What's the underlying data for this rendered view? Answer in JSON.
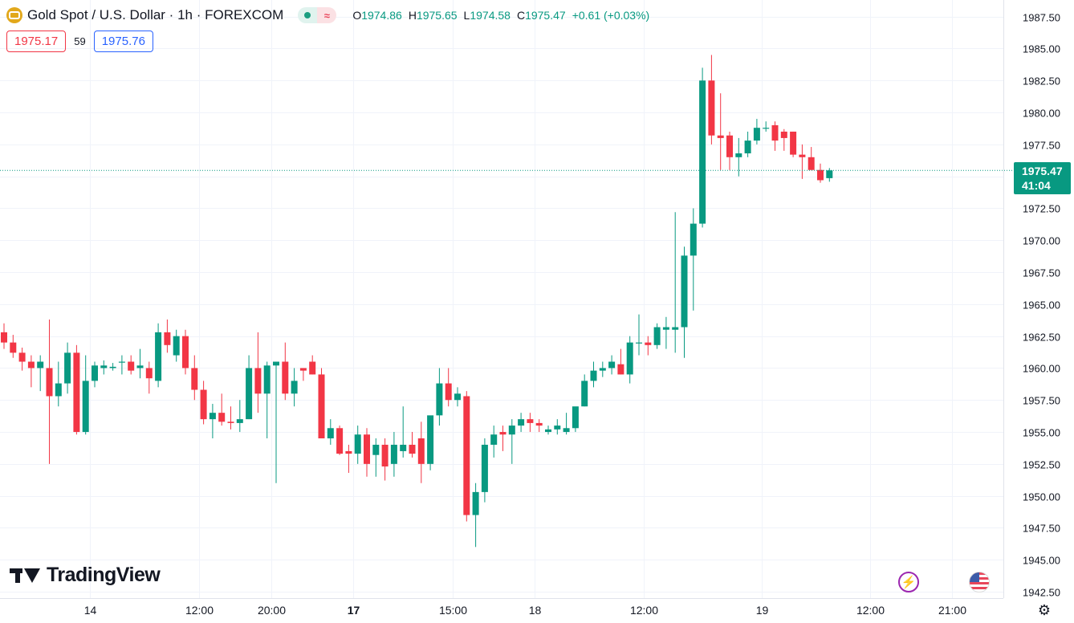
{
  "header": {
    "symbol": "Gold Spot / U.S. Dollar · 1h · FOREXCOM",
    "o_label": "O",
    "o_value": "1974.86",
    "h_label": "H",
    "h_value": "1975.65",
    "l_label": "L",
    "l_value": "1974.58",
    "c_label": "C",
    "c_value": "1975.47",
    "change": "+0.61 (+0.03%)",
    "pill_icon": "≈"
  },
  "trade": {
    "bid": "1975.17",
    "spread": "59",
    "ask": "1975.76"
  },
  "last_price": {
    "price": "1975.47",
    "countdown": "41:04"
  },
  "branding": {
    "logo_text": "TradingView"
  },
  "icons": {
    "bolt": "⚡",
    "gear": "⚙"
  },
  "colors": {
    "up": "#089981",
    "down": "#f23645",
    "grid": "#f0f3fa",
    "text": "#131722"
  },
  "chart_data": {
    "type": "candlestick",
    "title": "",
    "y_ticks": [
      "1942.50",
      "1945.00",
      "1947.50",
      "1950.00",
      "1952.50",
      "1955.00",
      "1957.50",
      "1960.00",
      "1962.50",
      "1965.00",
      "1967.50",
      "1970.00",
      "1972.50",
      "1975.00",
      "1977.50",
      "1980.00",
      "1982.50",
      "1985.00",
      "1987.50"
    ],
    "x_ticks": [
      {
        "label": "14",
        "index": 9.5,
        "bold": false
      },
      {
        "label": "12:00",
        "index": 21.5,
        "bold": false
      },
      {
        "label": "20:00",
        "index": 29.5,
        "bold": false
      },
      {
        "label": "17",
        "index": 38.5,
        "bold": true
      },
      {
        "label": "15:00",
        "index": 49.5,
        "bold": false
      },
      {
        "label": "18",
        "index": 58.5,
        "bold": false
      },
      {
        "label": "12:00",
        "index": 70.5,
        "bold": false
      },
      {
        "label": "19",
        "index": 83.5,
        "bold": false
      },
      {
        "label": "12:00",
        "index": 95.5,
        "bold": false
      },
      {
        "label": "21:00",
        "index": 104.5,
        "bold": false
      }
    ],
    "ylim": [
      1942.0,
      1988.8
    ],
    "last_price": 1975.47,
    "ohlc": [
      [
        1962.8,
        1963.5,
        1961.5,
        1962.0
      ],
      [
        1962.0,
        1962.6,
        1960.8,
        1961.2
      ],
      [
        1961.2,
        1961.6,
        1959.8,
        1960.5
      ],
      [
        1960.5,
        1961.0,
        1958.5,
        1960.0
      ],
      [
        1960.0,
        1961.0,
        1958.2,
        1960.5
      ],
      [
        1960.0,
        1963.8,
        1952.5,
        1957.8
      ],
      [
        1957.8,
        1960.5,
        1957.0,
        1958.8
      ],
      [
        1958.8,
        1962.0,
        1958.0,
        1961.2
      ],
      [
        1961.2,
        1961.8,
        1954.8,
        1955.0
      ],
      [
        1955.0,
        1961.0,
        1954.8,
        1959.0
      ],
      [
        1959.0,
        1960.5,
        1958.5,
        1960.2
      ],
      [
        1960.0,
        1960.6,
        1959.5,
        1960.2
      ],
      [
        1960.0,
        1960.4,
        1959.8,
        1960.1
      ],
      [
        1960.5,
        1961.0,
        1959.5,
        1960.5
      ],
      [
        1960.5,
        1961.0,
        1959.5,
        1959.8
      ],
      [
        1960.0,
        1961.5,
        1959.2,
        1960.2
      ],
      [
        1960.0,
        1960.5,
        1958.0,
        1959.2
      ],
      [
        1959.0,
        1963.5,
        1958.5,
        1962.8
      ],
      [
        1962.8,
        1963.8,
        1961.2,
        1961.8
      ],
      [
        1961.0,
        1963.0,
        1960.5,
        1962.5
      ],
      [
        1962.5,
        1963.0,
        1959.5,
        1960.0
      ],
      [
        1960.0,
        1961.0,
        1957.5,
        1958.3
      ],
      [
        1958.3,
        1959.0,
        1955.6,
        1956.0
      ],
      [
        1956.0,
        1957.2,
        1954.5,
        1956.5
      ],
      [
        1956.5,
        1958.0,
        1955.5,
        1955.8
      ],
      [
        1955.8,
        1957.0,
        1955.2,
        1955.7
      ],
      [
        1955.7,
        1957.5,
        1955.0,
        1956.0
      ],
      [
        1956.0,
        1961.0,
        1956.0,
        1960.0
      ],
      [
        1960.0,
        1962.8,
        1956.5,
        1958.0
      ],
      [
        1958.0,
        1960.5,
        1954.5,
        1960.2
      ],
      [
        1960.2,
        1960.3,
        1951.0,
        1960.5
      ],
      [
        1960.5,
        1962.0,
        1957.5,
        1958.0
      ],
      [
        1958.0,
        1960.0,
        1957.0,
        1959.0
      ],
      [
        1960.0,
        1960.0,
        1959.0,
        1959.8
      ],
      [
        1960.5,
        1961.0,
        1959.5,
        1959.5
      ],
      [
        1959.5,
        1960.0,
        1954.5,
        1954.5
      ],
      [
        1954.5,
        1956.0,
        1954.0,
        1955.3
      ],
      [
        1955.3,
        1955.5,
        1953.2,
        1953.3
      ],
      [
        1953.5,
        1954.0,
        1951.8,
        1953.3
      ],
      [
        1953.3,
        1955.5,
        1952.5,
        1954.8
      ],
      [
        1954.8,
        1955.3,
        1951.5,
        1952.5
      ],
      [
        1953.2,
        1954.5,
        1951.5,
        1954.0
      ],
      [
        1954.0,
        1954.5,
        1951.2,
        1952.3
      ],
      [
        1952.5,
        1955.0,
        1951.5,
        1954.0
      ],
      [
        1953.5,
        1957.0,
        1953.0,
        1954.0
      ],
      [
        1954.0,
        1955.0,
        1953.0,
        1953.3
      ],
      [
        1954.5,
        1955.8,
        1951.0,
        1952.5
      ],
      [
        1952.5,
        1956.0,
        1952.0,
        1956.3
      ],
      [
        1956.3,
        1960.0,
        1955.5,
        1958.8
      ],
      [
        1958.8,
        1960.0,
        1957.0,
        1957.5
      ],
      [
        1957.5,
        1958.5,
        1957.0,
        1958.0
      ],
      [
        1957.8,
        1958.2,
        1948.0,
        1948.5
      ],
      [
        1948.5,
        1951.0,
        1946.0,
        1950.3
      ],
      [
        1950.3,
        1954.5,
        1949.5,
        1954.0
      ],
      [
        1954.0,
        1955.5,
        1953.0,
        1954.8
      ],
      [
        1955.0,
        1955.5,
        1953.5,
        1954.8
      ],
      [
        1954.8,
        1956.0,
        1952.5,
        1955.5
      ],
      [
        1955.5,
        1956.5,
        1955.0,
        1956.0
      ],
      [
        1956.0,
        1956.5,
        1955.0,
        1955.7
      ],
      [
        1955.7,
        1956.0,
        1955.0,
        1955.5
      ],
      [
        1955.0,
        1955.5,
        1954.8,
        1955.2
      ],
      [
        1955.2,
        1956.0,
        1954.8,
        1955.5
      ],
      [
        1955.0,
        1956.5,
        1954.8,
        1955.3
      ],
      [
        1955.3,
        1956.8,
        1955.0,
        1957.0
      ],
      [
        1957.0,
        1959.5,
        1957.0,
        1959.0
      ],
      [
        1959.0,
        1960.5,
        1958.5,
        1959.8
      ],
      [
        1959.8,
        1960.5,
        1959.3,
        1960.0
      ],
      [
        1960.0,
        1961.0,
        1959.5,
        1960.5
      ],
      [
        1960.3,
        1961.5,
        1959.5,
        1959.5
      ],
      [
        1959.5,
        1962.5,
        1958.8,
        1962.0
      ],
      [
        1962.0,
        1964.2,
        1961.0,
        1962.0
      ],
      [
        1962.0,
        1962.5,
        1961.0,
        1961.8
      ],
      [
        1961.8,
        1963.5,
        1961.5,
        1963.2
      ],
      [
        1963.0,
        1964.0,
        1961.5,
        1963.2
      ],
      [
        1963.0,
        1972.2,
        1961.2,
        1963.2
      ],
      [
        1963.2,
        1969.5,
        1960.8,
        1968.8
      ],
      [
        1968.8,
        1972.5,
        1964.5,
        1971.3
      ],
      [
        1971.3,
        1983.5,
        1971.0,
        1982.5
      ],
      [
        1982.5,
        1984.5,
        1977.5,
        1978.2
      ],
      [
        1978.2,
        1981.5,
        1975.5,
        1978.0
      ],
      [
        1978.2,
        1978.5,
        1975.5,
        1976.5
      ],
      [
        1976.5,
        1978.0,
        1975.0,
        1976.8
      ],
      [
        1976.8,
        1978.5,
        1976.5,
        1977.8
      ],
      [
        1977.8,
        1979.5,
        1977.5,
        1978.8
      ],
      [
        1978.8,
        1979.3,
        1978.5,
        1978.8
      ],
      [
        1979.0,
        1979.3,
        1977.0,
        1977.8
      ],
      [
        1978.5,
        1978.7,
        1977.0,
        1978.0
      ],
      [
        1978.5,
        1978.5,
        1976.5,
        1976.7
      ],
      [
        1976.7,
        1977.5,
        1974.8,
        1976.5
      ],
      [
        1976.5,
        1977.3,
        1975.5,
        1975.5
      ],
      [
        1975.5,
        1976.0,
        1974.5,
        1974.7
      ],
      [
        1974.86,
        1975.65,
        1974.58,
        1975.47
      ]
    ]
  }
}
